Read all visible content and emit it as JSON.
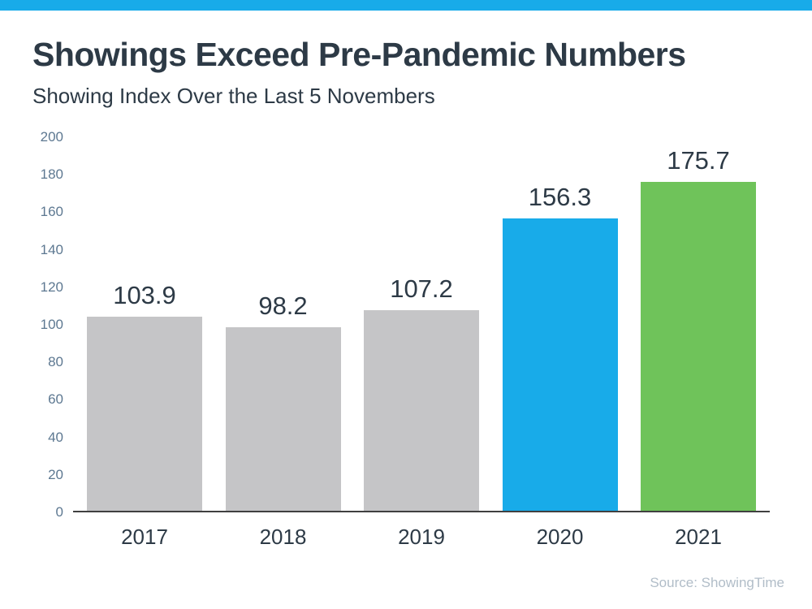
{
  "page": {
    "title": "Showings Exceed Pre-Pandemic Numbers",
    "subtitle": "Showing Index Over the Last 5 Novembers",
    "source": "Source: ShowingTime"
  },
  "colors": {
    "accent_bar": "#18abe9",
    "title_text": "#2d3a46",
    "subtitle_text": "#2d3a46",
    "ytick_text": "#5d7891",
    "xtick_text": "#2d3a46",
    "data_label_text": "#2d3a46",
    "axis_line": "#404040",
    "source_text": "#b1bdc8",
    "bar_gray": "#c5c5c7",
    "bar_blue": "#18abe9",
    "bar_green": "#6fc35a"
  },
  "chart_data": {
    "type": "bar",
    "title": "Showings Exceed Pre-Pandemic Numbers",
    "subtitle": "Showing Index Over the Last 5 Novembers",
    "categories": [
      "2017",
      "2018",
      "2019",
      "2020",
      "2021"
    ],
    "values": [
      103.9,
      98.2,
      107.2,
      156.3,
      175.7
    ],
    "data_labels": [
      "103.9",
      "98.2",
      "107.2",
      "156.3",
      "175.7"
    ],
    "bar_colors": [
      "#c5c5c7",
      "#c5c5c7",
      "#c5c5c7",
      "#18abe9",
      "#6fc35a"
    ],
    "xlabel": "",
    "ylabel": "",
    "ylim": [
      0,
      200
    ],
    "yticks": [
      0,
      20,
      40,
      60,
      80,
      100,
      120,
      140,
      160,
      180,
      200
    ],
    "grid": false,
    "legend_position": "none",
    "annotations": [],
    "source": "Source: ShowingTime"
  }
}
